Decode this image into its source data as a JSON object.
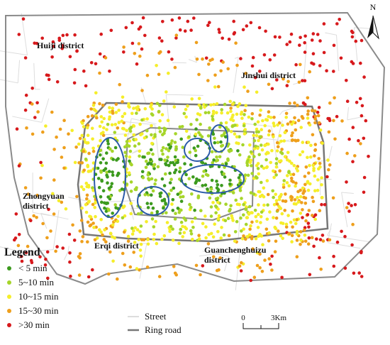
{
  "map": {
    "north_label": "N",
    "districts": [
      {
        "lines": [
          "Huiji district"
        ]
      },
      {
        "lines": [
          "Jinshui district"
        ]
      },
      {
        "lines": [
          "Zhongyuan",
          "district"
        ]
      },
      {
        "lines": [
          "Erqi district"
        ]
      },
      {
        "lines": [
          "Guanchenghuizu",
          "district"
        ]
      }
    ],
    "legend": {
      "title": "Legend",
      "classes": [
        {
          "label": "< 5 min",
          "color": "#3c9a1e"
        },
        {
          "label": "5~10 min",
          "color": "#a6d52a"
        },
        {
          "label": "10~15 min",
          "color": "#f5ee2a"
        },
        {
          "label": "15~30 min",
          "color": "#ee9f1c"
        },
        {
          "label": ">30 min",
          "color": "#d7191c"
        }
      ],
      "lines": [
        {
          "label": "Street"
        },
        {
          "label": "Ring road"
        }
      ]
    },
    "scale_bar": {
      "labels": [
        "0",
        "3Km"
      ]
    }
  }
}
